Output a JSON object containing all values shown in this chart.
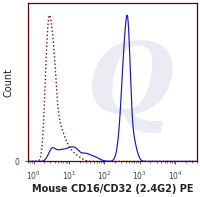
{
  "xlabel": "Mouse CD16/CD32 (2.4G2) PE",
  "ylabel": "Count",
  "xlim_log": [
    0.7,
    40000
  ],
  "ylim": [
    0,
    1.08
  ],
  "background_color": "#ffffff",
  "border_color": "#6B0000",
  "watermark_color": [
    0.78,
    0.78,
    0.88
  ],
  "watermark_alpha": 0.35,
  "solid_line_color": "#1515cc",
  "dashed_line_color": "#7B1010",
  "xlabel_fontsize": 7.0,
  "ylabel_fontsize": 7.0,
  "tick_fontsize": 5.5
}
